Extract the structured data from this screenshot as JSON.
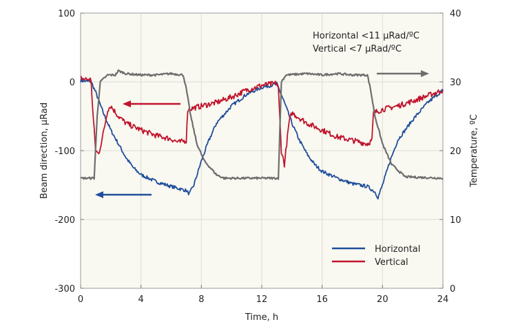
{
  "chart_data": {
    "type": "line",
    "xlabel": "Time, h",
    "ylabel": "Beam direction, µRad",
    "y2label": "Temperature, ºC",
    "xlim": [
      0,
      24
    ],
    "ylim": [
      -300,
      100
    ],
    "y2lim": [
      0,
      40
    ],
    "xticks": [
      0,
      4,
      8,
      12,
      16,
      20,
      24
    ],
    "yticks": [
      -300,
      -200,
      -100,
      0,
      100
    ],
    "y2ticks": [
      0,
      10,
      20,
      30,
      40
    ],
    "grid": true,
    "annotation": [
      "Horizontal <11 µRad/ºC",
      "Vertical <7 µRad/ºC"
    ],
    "legend_position": "bottom-right",
    "series": [
      {
        "name": "Horizontal",
        "color": "#1f4e9a",
        "axis": "left",
        "x": [
          0,
          0.7,
          1,
          1.5,
          2,
          2.5,
          3,
          3.5,
          4,
          5,
          6,
          6.5,
          7,
          7.2,
          7.5,
          8,
          8.5,
          9,
          10,
          11,
          12,
          13,
          13.1,
          13.5,
          14,
          14.5,
          15,
          15.5,
          16,
          17,
          18,
          19,
          19.5,
          19.7,
          20,
          20.5,
          21,
          22,
          23,
          24
        ],
        "y": [
          2,
          0,
          -15,
          -45,
          -70,
          -90,
          -110,
          -125,
          -135,
          -145,
          -152,
          -155,
          -158,
          -163,
          -150,
          -115,
          -85,
          -60,
          -35,
          -18,
          -8,
          -3,
          -8,
          -30,
          -60,
          -85,
          -105,
          -120,
          -130,
          -140,
          -148,
          -152,
          -160,
          -168,
          -150,
          -115,
          -85,
          -55,
          -30,
          -12
        ]
      },
      {
        "name": "Vertical",
        "color": "#c0142c",
        "axis": "left",
        "x": [
          0,
          0.7,
          0.8,
          1.0,
          1.2,
          1.5,
          1.8,
          2,
          2.5,
          3,
          3.5,
          4,
          5,
          6,
          6.5,
          7,
          7.1,
          8,
          9,
          10,
          11,
          12,
          13,
          13.1,
          13.3,
          13.5,
          13.8,
          14,
          15,
          16,
          17,
          18,
          19,
          19.3,
          19.4,
          20,
          21,
          22,
          23,
          24
        ],
        "y": [
          5,
          3,
          -40,
          -100,
          -105,
          -75,
          -40,
          -35,
          -50,
          -60,
          -65,
          -70,
          -78,
          -83,
          -88,
          -85,
          -40,
          -35,
          -30,
          -22,
          -12,
          -5,
          -2,
          -10,
          -100,
          -120,
          -60,
          -45,
          -60,
          -70,
          -80,
          -85,
          -90,
          -85,
          -45,
          -40,
          -35,
          -28,
          -20,
          -12
        ]
      },
      {
        "name": "Temperature",
        "color": "#6e6e6e",
        "axis": "right",
        "in_legend": false,
        "x": [
          0,
          0.9,
          1.1,
          1.3,
          1.8,
          2.3,
          2.5,
          3,
          4,
          5,
          6,
          6.8,
          7,
          7.3,
          7.7,
          8.2,
          9,
          9.5,
          13.1,
          13.3,
          13.6,
          15,
          16,
          17,
          18,
          19,
          19.2,
          19.5,
          20,
          20.6,
          21.5,
          24
        ],
        "y": [
          16,
          16,
          25,
          30,
          31,
          31,
          31.6,
          31.2,
          31,
          31,
          31.2,
          31,
          29,
          25,
          21,
          18.5,
          16.5,
          16,
          16,
          30,
          31,
          31.2,
          31,
          31.2,
          31,
          31,
          29,
          25,
          21,
          18,
          16.2,
          16
        ]
      }
    ]
  }
}
